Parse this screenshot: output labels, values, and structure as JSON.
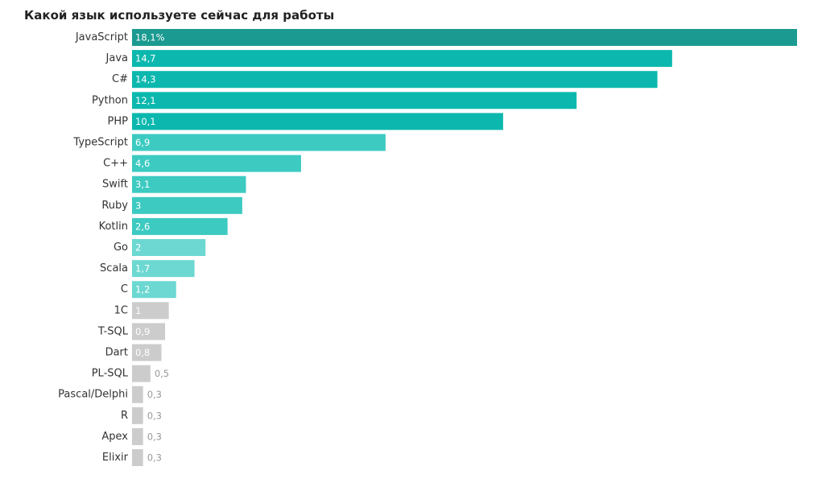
{
  "chart_data": {
    "type": "bar",
    "orientation": "horizontal",
    "title": "Какой язык используете сейчас для работы",
    "categories": [
      "JavaScript",
      "Java",
      "C#",
      "Python",
      "PHP",
      "TypeScript",
      "C++",
      "Swift",
      "Ruby",
      "Kotlin",
      "Go",
      "Scala",
      "C",
      "1C",
      "T-SQL",
      "Dart",
      "PL-SQL",
      "Pascal/Delphi",
      "R",
      "Apex",
      "Elixir"
    ],
    "values": [
      18.1,
      14.7,
      14.3,
      12.1,
      10.1,
      6.9,
      4.6,
      3.1,
      3,
      2.6,
      2,
      1.7,
      1.2,
      1,
      0.9,
      0.8,
      0.5,
      0.3,
      0.3,
      0.3,
      0.3
    ],
    "value_labels": [
      "18,1%",
      "14,7",
      "14,3",
      "12,1",
      "10,1",
      "6,9",
      "4,6",
      "3,1",
      "3",
      "2,6",
      "2",
      "1,7",
      "1,2",
      "1",
      "0,9",
      "0,8",
      "0,5",
      "0,3",
      "0,3",
      "0,3",
      "0,3"
    ],
    "xlim": [
      0,
      18.1
    ],
    "grid": false,
    "legend": "none",
    "colors": [
      "#1a9a90",
      "#0cb8ae",
      "#0cb8ae",
      "#0cb8ae",
      "#0cb8ae",
      "#3ccac1",
      "#3ccac1",
      "#3ccac1",
      "#3ccac1",
      "#3ccac1",
      "#6dd8d2",
      "#6dd8d2",
      "#6dd8d2",
      "#cccccc",
      "#cccccc",
      "#cccccc",
      "#cccccc",
      "#cccccc",
      "#cccccc",
      "#cccccc",
      "#cccccc"
    ],
    "label_inside_color": "#ffffff",
    "label_outside_color": "#999999"
  }
}
